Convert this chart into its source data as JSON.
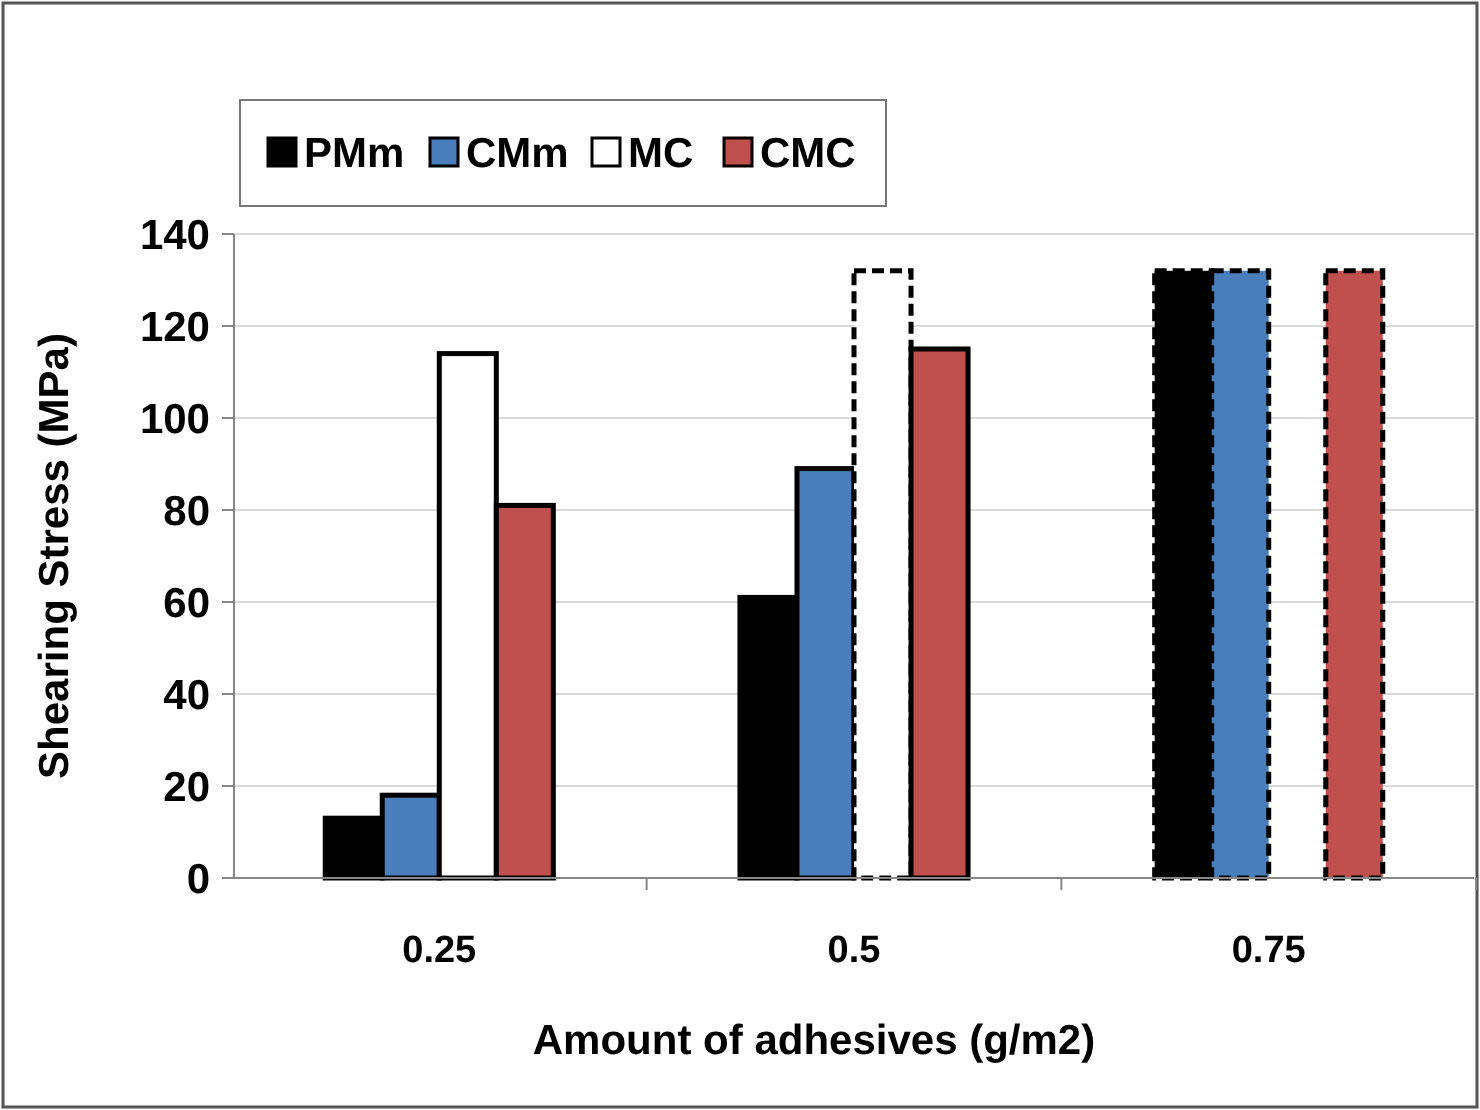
{
  "chart_data": {
    "type": "bar",
    "xlabel": "Amount of adhesives (g/m2)",
    "ylabel": "Shearing Stress (MPa)",
    "categories": [
      "0.25",
      "0.5",
      "0.75"
    ],
    "series": [
      {
        "name": "PMm",
        "color": "#000000",
        "values": [
          13,
          61,
          132
        ],
        "line_style": [
          "solid",
          "solid",
          "dashed"
        ]
      },
      {
        "name": "CMm",
        "color": "#4a7ebb",
        "values": [
          18,
          89,
          132
        ],
        "line_style": [
          "solid",
          "solid",
          "dashed"
        ]
      },
      {
        "name": "MC",
        "color": "#ffffff",
        "values": [
          114,
          132,
          null
        ],
        "line_style": [
          "solid",
          "dashed",
          null
        ]
      },
      {
        "name": "CMC",
        "color": "#c0504d",
        "values": [
          81,
          115,
          132
        ],
        "line_style": [
          "solid",
          "solid",
          "dashed"
        ]
      }
    ],
    "ylim": [
      0,
      140
    ],
    "yticks": [
      0,
      20,
      40,
      60,
      80,
      100,
      120,
      140
    ],
    "grid": "y",
    "legend": "top left"
  }
}
